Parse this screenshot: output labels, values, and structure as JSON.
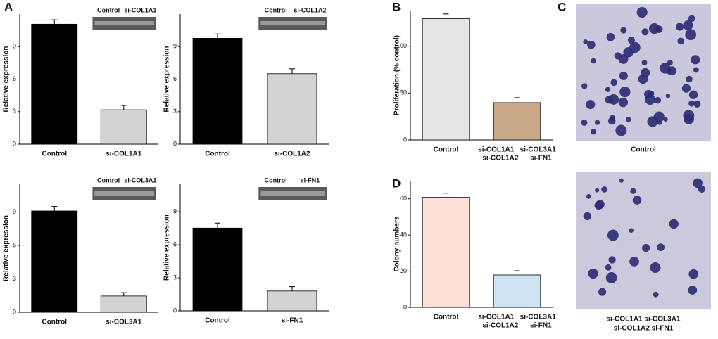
{
  "panel_labels": [
    "A",
    "B",
    "C",
    "D"
  ],
  "chart_data": [
    {
      "type": "bar",
      "ylabel": "Relative expression",
      "categories": [
        "Control",
        "si-COL1A1"
      ],
      "values": [
        11.07,
        3.17
      ],
      "errors": [
        0.4,
        0.4
      ],
      "colors": [
        "#000000",
        "#d3d3d3"
      ],
      "ylim": [
        0,
        12
      ],
      "yticks": [
        0,
        3,
        6,
        9
      ],
      "blot_labels": [
        "Control",
        "si-COL1A1"
      ]
    },
    {
      "type": "bar",
      "ylabel": "Relative expression",
      "categories": [
        "Control",
        "si-COL1A2"
      ],
      "values": [
        9.77,
        6.5
      ],
      "errors": [
        0.4,
        0.45
      ],
      "colors": [
        "#000000",
        "#d3d3d3"
      ],
      "ylim": [
        0,
        12
      ],
      "yticks": [
        0,
        3,
        6,
        9
      ],
      "blot_labels": [
        "Control",
        "si-COL1A2"
      ]
    },
    {
      "type": "bar",
      "ylabel": "Relative expression",
      "categories": [
        "Control",
        "si-COL3A1"
      ],
      "values": [
        9.1,
        1.46
      ],
      "errors": [
        0.4,
        0.3
      ],
      "colors": [
        "#000000",
        "#d3d3d3"
      ],
      "ylim": [
        0,
        11.5
      ],
      "yticks": [
        0,
        3,
        6,
        9
      ],
      "blot_labels": [
        "Control",
        "si-COL3A1"
      ]
    },
    {
      "type": "bar",
      "ylabel": "Relative expression",
      "categories": [
        "Control",
        "si-FN1"
      ],
      "values": [
        7.52,
        1.8
      ],
      "errors": [
        0.45,
        0.4
      ],
      "colors": [
        "#000000",
        "#d3d3d3"
      ],
      "ylim": [
        0,
        11.5
      ],
      "yticks": [
        0,
        3,
        6,
        9
      ],
      "blot_labels": [
        "Control",
        "si-FN1"
      ]
    },
    {
      "type": "bar",
      "ylabel": "Proliferation (% control)",
      "categories": [
        "Control",
        [
          "si-COL1A1   si-COL3A1",
          "si-COL1A2      si-FN1"
        ]
      ],
      "values": [
        129.3,
        39.8
      ],
      "errors": [
        5,
        5.3
      ],
      "colors": [
        "#e6e6e6",
        "#c8a886"
      ],
      "ylim": [
        0,
        138
      ],
      "yticks": [
        0,
        50,
        100
      ]
    },
    {
      "type": "bar",
      "ylabel": "Colony numbers",
      "categories": [
        "Control",
        [
          "si-COL1A1   si-COL3A1",
          "si-COL1A2      si-FN1"
        ]
      ],
      "values": [
        60.8,
        17.9
      ],
      "errors": [
        2.3,
        2.3
      ],
      "colors": [
        "#fde0d8",
        "#cfe3f5"
      ],
      "ylim": [
        0,
        70
      ],
      "yticks": [
        0,
        20,
        40,
        60
      ]
    }
  ],
  "panel_c": {
    "captions": [
      [
        "Control"
      ],
      [
        "si-COL1A1   si-COL3A1",
        "si-COL1A2      si-FN1"
      ]
    ]
  }
}
